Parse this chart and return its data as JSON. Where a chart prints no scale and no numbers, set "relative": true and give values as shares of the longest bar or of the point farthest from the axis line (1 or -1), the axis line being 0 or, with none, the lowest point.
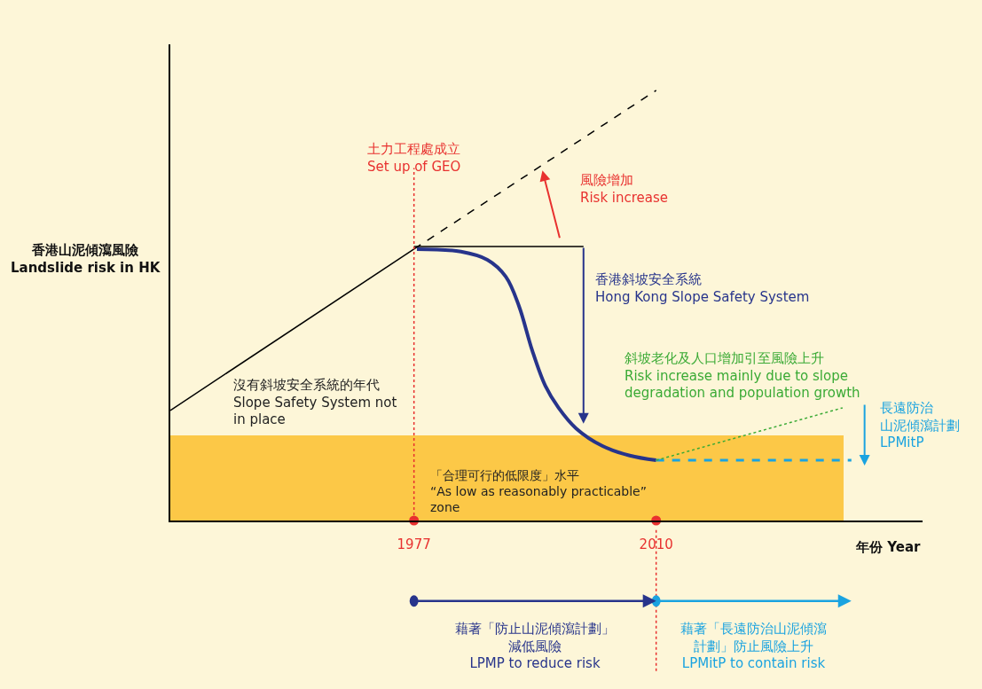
{
  "chart_data": {
    "type": "line",
    "relative": true,
    "ylabel": "香港山泥傾瀉風險\nLandslide risk in HK",
    "xlabel": "年份 Year",
    "xlim": [
      1943.8,
      2046.3
    ],
    "xticks": [
      1977,
      2010
    ],
    "grid": false,
    "series": [
      {
        "color": "#000000",
        "line_style": "solid",
        "x": [
          1943.8,
          1977
        ],
        "values": [
          0.256,
          0.631
        ]
      },
      {
        "color": "#000000",
        "line_style": "dashed",
        "x": [
          1977,
          2010
        ],
        "values": [
          0.631,
          1.0
        ]
      },
      {
        "color": "#000000",
        "line_style": "solid",
        "x": [
          1977,
          2000.1
        ],
        "values": [
          0.637,
          0.637
        ]
      },
      {
        "color": "#27348b",
        "line_style": "solid",
        "x": [
          1977.4,
          1983.4,
          1987.0,
          1989.5,
          1991.3,
          1993.1,
          1994.9,
          1996.7,
          1999.1,
          2002.7,
          2006.4,
          2010.0
        ],
        "values": [
          0.631,
          0.625,
          0.606,
          0.567,
          0.499,
          0.396,
          0.313,
          0.262,
          0.214,
          0.173,
          0.151,
          0.14
        ]
      },
      {
        "color": "#1aa3e0",
        "line_style": "dashed",
        "x": [
          2010,
          2036.6
        ],
        "values": [
          0.14,
          0.14
        ]
      },
      {
        "color": "#3aaa35",
        "line_style": "dotted",
        "x": [
          2010,
          2035.4
        ],
        "values": [
          0.14,
          0.262
        ]
      },
      {
        "type": "scatter",
        "color": "#e8312f",
        "marker": "circle",
        "x": [
          1977,
          2010
        ],
        "values": [
          0,
          0
        ]
      }
    ],
    "bands": [
      {
        "axis": "y",
        "from": 0,
        "to": 0.198,
        "color": "#fbbf2e",
        "label": "「合理可行的低限度」水平\n“As low as reasonably practicable”\nzone"
      }
    ],
    "ref_lines": [
      {
        "axis": "x",
        "value": 1977,
        "color": "#e8312f",
        "line_style": "dotted",
        "label": "土力工程處成立\nSet up of GEO"
      }
    ],
    "annotations": [
      "沒有斜坡安全系統的年代\nSlope Safety System not\nin place",
      "風險增加\nRisk increase",
      "香港斜坡安全系統\nHong Kong Slope Safety System",
      "斜坡老化及人口增加引至風險上升\nRisk increase mainly due to slope\ndegradation and population growth",
      "長遠防治山泥傾瀉計劃\nLPMitP",
      "藉著「防止山泥傾瀉計劃」減低風險\nLPMP to reduce risk",
      "藉著「長遠防治山泥傾瀉計劃」防止風險上升\nLPMitP to contain risk"
    ]
  }
}
